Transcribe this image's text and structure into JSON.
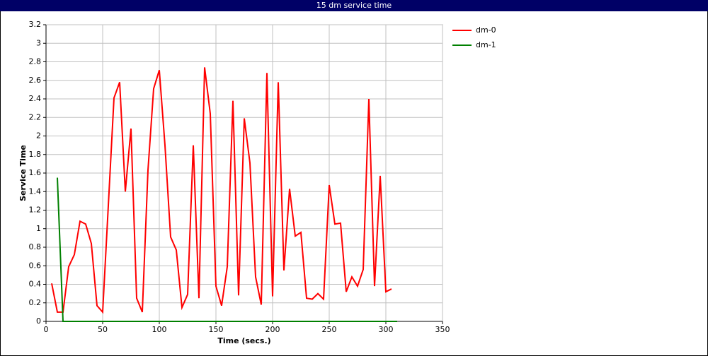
{
  "chart_data": {
    "type": "line",
    "title": "15 dm service time",
    "x_label": "Time (secs.)",
    "y_label": "Service Time",
    "xlim": [
      0,
      350
    ],
    "xticks": [
      0,
      50,
      100,
      150,
      200,
      250,
      300,
      350
    ],
    "ylim": [
      0,
      3.2
    ],
    "yticks": [
      0,
      0.2,
      0.4,
      0.6,
      0.8,
      1,
      1.2,
      1.4,
      1.6,
      1.8,
      2,
      2.2,
      2.4,
      2.6,
      2.8,
      3,
      3.2
    ],
    "grid": true,
    "legend": "right",
    "series": [
      {
        "name": "dm-0",
        "color": "#ff0000",
        "x": [
          5,
          10,
          15,
          20,
          25,
          30,
          35,
          40,
          45,
          50,
          55,
          60,
          65,
          70,
          75,
          80,
          85,
          90,
          95,
          100,
          105,
          110,
          115,
          120,
          125,
          130,
          135,
          140,
          145,
          150,
          155,
          160,
          165,
          170,
          175,
          180,
          185,
          190,
          195,
          200,
          205,
          210,
          215,
          220,
          225,
          230,
          235,
          240,
          245,
          250,
          255,
          260,
          265,
          270,
          275,
          280,
          285,
          290,
          295,
          300,
          305
        ],
        "values": [
          0.41,
          0.1,
          0.1,
          0.59,
          0.72,
          1.08,
          1.05,
          0.84,
          0.17,
          0.1,
          1.25,
          2.41,
          2.58,
          1.4,
          2.08,
          0.25,
          0.1,
          1.63,
          2.51,
          2.71,
          1.9,
          0.91,
          0.77,
          0.15,
          0.29,
          1.9,
          0.25,
          2.74,
          2.24,
          0.38,
          0.17,
          0.59,
          2.38,
          0.28,
          2.19,
          1.71,
          0.48,
          0.18,
          2.68,
          0.27,
          2.58,
          0.55,
          1.43,
          0.92,
          0.96,
          0.25,
          0.24,
          0.3,
          0.24,
          1.47,
          1.05,
          1.06,
          0.32,
          0.48,
          0.38,
          0.56,
          2.4,
          0.38,
          1.57,
          0.32,
          0.35
        ]
      },
      {
        "name": "dm-1",
        "color": "#008000",
        "x": [
          10,
          15,
          310
        ],
        "values": [
          1.55,
          0,
          0
        ]
      }
    ]
  }
}
